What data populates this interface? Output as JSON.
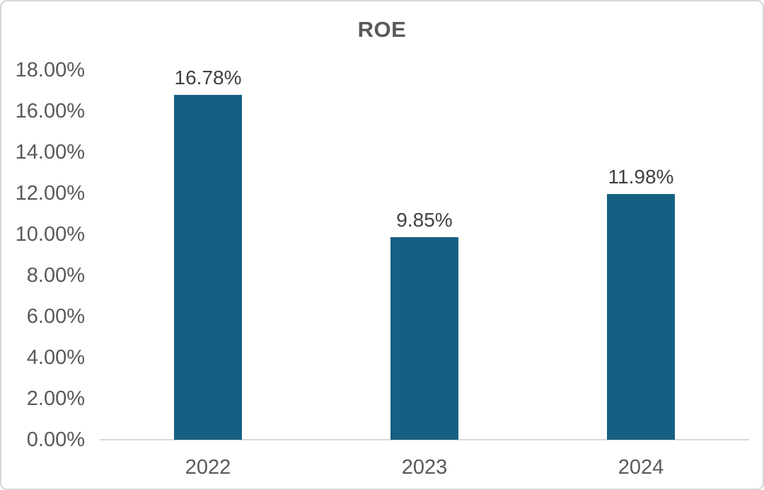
{
  "chart_data": {
    "type": "bar",
    "title": "ROE",
    "categories": [
      "2022",
      "2023",
      "2024"
    ],
    "values": [
      16.78,
      9.85,
      11.98
    ],
    "data_labels": [
      "16.78%",
      "9.85%",
      "11.98%"
    ],
    "y_tick_values": [
      18,
      16,
      14,
      12,
      10,
      8,
      6,
      4,
      2,
      0
    ],
    "y_tick_labels": [
      "18.00%",
      "16.00%",
      "14.00%",
      "12.00%",
      "10.00%",
      "8.00%",
      "6.00%",
      "4.00%",
      "2.00%",
      "0.00%"
    ],
    "ylim": [
      0,
      18
    ],
    "y_tick_step": 2,
    "xlabel": "",
    "ylabel": "",
    "grid": false,
    "legend_position": "none"
  },
  "colors": {
    "bar": "#156082",
    "axis_line": "#d9d9d9",
    "tick_label": "#595959",
    "data_label": "#404040",
    "title": "#595959",
    "frame_border": "#d6d6d6",
    "background": "#ffffff"
  }
}
